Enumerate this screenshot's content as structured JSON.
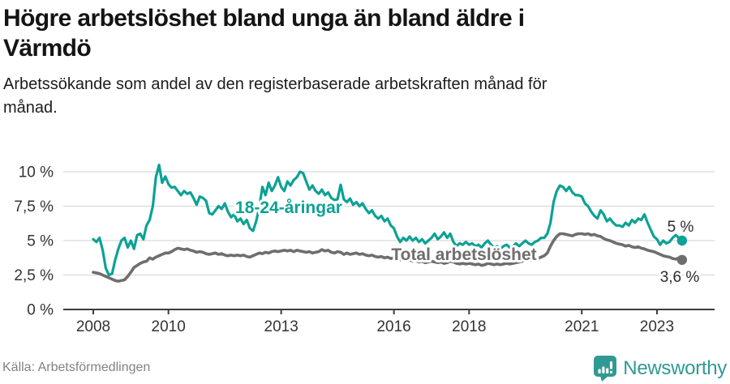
{
  "title_lines": [
    "Högre arbetslöshet bland unga än bland äldre i",
    "Värmdö"
  ],
  "subtitle_lines": [
    "Arbetssökande som andel av den registerbaserade arbetskraften månad för",
    "månad."
  ],
  "footer": {
    "source": "Källa: Arbetsförmedlingen",
    "brand": "Newsworthy"
  },
  "chart_data": {
    "type": "line",
    "unit": "%",
    "frequency": "monthly",
    "start": "2008-01",
    "end": "2023-09",
    "grid": true,
    "ylim": [
      0,
      10.6
    ],
    "x_ticks": [
      2008,
      2010,
      2013,
      2016,
      2018,
      2021,
      2023
    ],
    "y_ticks": [
      {
        "value": 0,
        "label": "0 %"
      },
      {
        "value": 2.5,
        "label": "2,5 %"
      },
      {
        "value": 5,
        "label": "5 %"
      },
      {
        "value": 7.5,
        "label": "7,5 %"
      },
      {
        "value": 10,
        "label": "10 %"
      }
    ],
    "style": {
      "grid_color": "#DADADA",
      "axis_color": "#3C3C3C",
      "tick_text_color": "#333333",
      "end_label_color": "#2B2B2B"
    },
    "series": [
      {
        "name": "18-24-åringar",
        "color": "#0CA295",
        "end_label": "5 %",
        "last_value": 5.0,
        "values": [
          5.1,
          4.9,
          5.2,
          4.3,
          3.0,
          2.5,
          2.6,
          3.6,
          4.4,
          5.0,
          5.2,
          4.5,
          5.0,
          4.4,
          5.4,
          5.5,
          5.1,
          6.1,
          6.5,
          7.5,
          9.6,
          10.5,
          9.2,
          9.65,
          9.1,
          8.85,
          8.9,
          8.6,
          8.3,
          8.6,
          8.4,
          8.5,
          8.1,
          7.6,
          8.2,
          8.1,
          7.9,
          7.0,
          6.9,
          7.2,
          7.5,
          7.3,
          7.7,
          7.1,
          6.7,
          6.9,
          6.4,
          6.6,
          6.2,
          6.5,
          5.9,
          5.7,
          6.4,
          7.4,
          8.9,
          8.3,
          9.2,
          8.6,
          9.0,
          9.6,
          8.9,
          8.6,
          9.3,
          9.0,
          9.4,
          9.6,
          10.0,
          9.9,
          9.3,
          8.7,
          9.0,
          8.6,
          8.4,
          8.7,
          8.3,
          8.5,
          8.1,
          7.95,
          8.0,
          9.05,
          8.0,
          7.8,
          8.05,
          7.6,
          7.8,
          7.5,
          7.7,
          7.3,
          7.0,
          7.2,
          6.8,
          6.6,
          6.8,
          6.4,
          6.6,
          6.1,
          5.9,
          5.3,
          4.9,
          5.2,
          5.0,
          5.3,
          5.0,
          5.2,
          4.9,
          5.1,
          4.8,
          5.0,
          5.2,
          5.5,
          5.1,
          5.3,
          5.6,
          5.2,
          5.5,
          4.9,
          4.6,
          4.8,
          4.7,
          4.9,
          4.7,
          4.8,
          4.6,
          4.7,
          4.5,
          4.8,
          5.0,
          4.7,
          4.5,
          4.6,
          4.4,
          4.6,
          4.7,
          4.5,
          4.6,
          4.8,
          4.6,
          4.8,
          5.0,
          4.8,
          4.7,
          4.9,
          5.0,
          5.2,
          5.2,
          5.5,
          6.3,
          7.8,
          8.6,
          9.0,
          8.9,
          8.6,
          8.9,
          8.5,
          8.3,
          8.3,
          8.2,
          7.7,
          7.5,
          7.1,
          6.8,
          6.6,
          7.2,
          6.9,
          6.4,
          6.6,
          6.3,
          6.1,
          6.1,
          6.0,
          6.3,
          6.1,
          6.5,
          6.3,
          6.6,
          6.5,
          6.9,
          6.3,
          5.8,
          5.3,
          5.1,
          4.7,
          5.0,
          4.8,
          4.9,
          5.2,
          5.4,
          5.2,
          5.0
        ]
      },
      {
        "name": "Total arbetslöshet",
        "color": "#6E6E6E",
        "end_label": "3,6 %",
        "last_value": 3.6,
        "values": [
          2.7,
          2.65,
          2.6,
          2.5,
          2.4,
          2.3,
          2.2,
          2.1,
          2.05,
          2.1,
          2.15,
          2.4,
          2.7,
          3.05,
          3.2,
          3.35,
          3.45,
          3.5,
          3.75,
          3.65,
          3.8,
          3.9,
          4.0,
          4.1,
          4.1,
          4.2,
          4.35,
          4.45,
          4.4,
          4.35,
          4.4,
          4.3,
          4.25,
          4.15,
          4.2,
          4.15,
          4.05,
          4.0,
          4.05,
          4.1,
          4.0,
          4.05,
          3.95,
          3.9,
          3.95,
          3.9,
          3.95,
          3.9,
          3.95,
          3.85,
          3.8,
          3.9,
          4.0,
          4.1,
          4.05,
          4.15,
          4.1,
          4.2,
          4.25,
          4.2,
          4.25,
          4.3,
          4.25,
          4.3,
          4.2,
          4.3,
          4.25,
          4.2,
          4.15,
          4.2,
          4.1,
          4.15,
          4.2,
          4.35,
          4.25,
          4.3,
          4.15,
          4.1,
          4.2,
          4.15,
          4.0,
          4.1,
          4.0,
          4.05,
          4.1,
          4.0,
          4.05,
          3.95,
          3.9,
          3.95,
          3.85,
          3.8,
          3.85,
          3.75,
          3.8,
          3.7,
          3.75,
          3.65,
          3.6,
          3.65,
          3.55,
          3.6,
          3.5,
          3.55,
          3.45,
          3.5,
          3.4,
          3.45,
          3.5,
          3.45,
          3.4,
          3.45,
          3.35,
          3.4,
          3.5,
          3.45,
          3.35,
          3.3,
          3.35,
          3.3,
          3.35,
          3.3,
          3.25,
          3.3,
          3.2,
          3.25,
          3.35,
          3.3,
          3.25,
          3.3,
          3.25,
          3.3,
          3.35,
          3.3,
          3.35,
          3.4,
          3.45,
          3.5,
          3.6,
          3.55,
          3.6,
          3.65,
          3.7,
          3.8,
          3.9,
          4.1,
          4.6,
          5.0,
          5.3,
          5.5,
          5.5,
          5.45,
          5.4,
          5.35,
          5.45,
          5.5,
          5.5,
          5.45,
          5.5,
          5.4,
          5.45,
          5.35,
          5.3,
          5.15,
          5.05,
          5.0,
          4.9,
          4.8,
          4.75,
          4.7,
          4.6,
          4.65,
          4.55,
          4.5,
          4.55,
          4.45,
          4.4,
          4.3,
          4.25,
          4.2,
          4.1,
          4.0,
          3.9,
          3.85,
          3.8,
          3.7,
          3.65,
          3.75,
          3.6
        ]
      }
    ]
  }
}
